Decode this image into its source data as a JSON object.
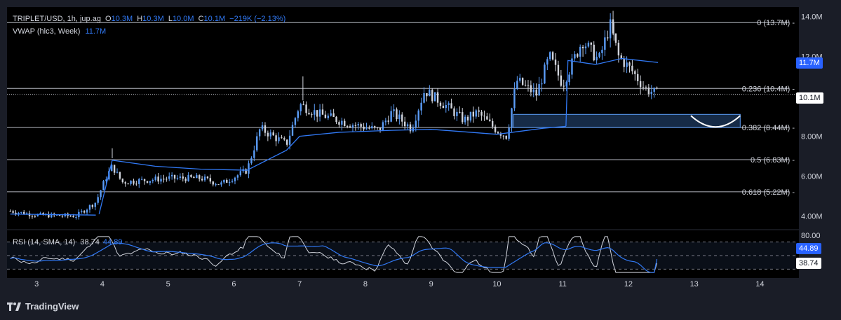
{
  "header": {
    "symbol": "TRIPLET/USD, 1h, jup.ag",
    "o_label": "O",
    "o_value": "10.3M",
    "h_label": "H",
    "h_value": "10.3M",
    "l_label": "L",
    "l_value": "10.0M",
    "c_label": "C",
    "c_value": "10.1M",
    "change": "−219K (−2.13%)",
    "vwap_label": "VWAP (hlc3, Week)",
    "vwap_value": "11.7M"
  },
  "rsi_header": {
    "label": "RSI (14, SMA, 14)",
    "rsi_value": "38.74",
    "sma_value": "44.89"
  },
  "price_tags": {
    "vwap": "11.7M",
    "last": "10.1M"
  },
  "rsi_tags": {
    "sma": "44.89",
    "rsi": "38.74"
  },
  "brand": {
    "name": "TradingView"
  },
  "colors": {
    "background": "#000000",
    "up": "#5b9cf6",
    "down": "#d1d4dc",
    "vwap": "#3179f5",
    "rsi": "#d1d4dc",
    "rsi_sma": "#3179f5",
    "fib": "#b2b5be",
    "zone": "#1e3a5f"
  },
  "chart_data": [
    {
      "type": "candlestick",
      "title": "TRIPLET/USD, 1h, jup.ag",
      "ylim": [
        3.6,
        14.2
      ],
      "yticks": [
        {
          "value": 14,
          "label": "14.0M"
        },
        {
          "value": 12,
          "label": "12.0M"
        },
        {
          "value": 10,
          "label": "10.0M"
        },
        {
          "value": 8,
          "label": "8.00M"
        },
        {
          "value": 6,
          "label": "6.00M"
        },
        {
          "value": 4,
          "label": "4.00M"
        }
      ],
      "xlim": [
        2.55,
        14.55
      ],
      "xticks": [
        "3",
        "4",
        "5",
        "6",
        "7",
        "8",
        "9",
        "10",
        "11",
        "12",
        "13",
        "14"
      ],
      "grid": false,
      "fib_levels": [
        {
          "ratio": "0",
          "price": 13.7,
          "label": "0 (13.7M)"
        },
        {
          "ratio": "0.236",
          "price": 10.4,
          "label": "0.236 (10.4M)"
        },
        {
          "ratio": "0.382",
          "price": 8.44,
          "label": "0.382 (8.44M)"
        },
        {
          "ratio": "0.5",
          "price": 6.83,
          "label": "0.5 (6.83M)"
        },
        {
          "ratio": "0.618",
          "price": 5.22,
          "label": "0.618 (5.22M)"
        }
      ],
      "last_price": 10.1,
      "vwap_last": 11.7,
      "zone": {
        "x_start": 10.25,
        "x_end": 13.7,
        "y_low": 8.44,
        "y_high": 9.1
      },
      "anchors": [
        {
          "x": 2.6,
          "p": 4.25
        },
        {
          "x": 3.0,
          "p": 4.05
        },
        {
          "x": 3.6,
          "p": 4.0
        },
        {
          "x": 3.9,
          "p": 4.7
        },
        {
          "x": 4.05,
          "p": 5.9
        },
        {
          "x": 4.15,
          "p": 6.5
        },
        {
          "x": 4.3,
          "p": 5.7
        },
        {
          "x": 5.0,
          "p": 5.9
        },
        {
          "x": 5.5,
          "p": 5.9
        },
        {
          "x": 5.8,
          "p": 5.6
        },
        {
          "x": 6.2,
          "p": 6.3
        },
        {
          "x": 6.4,
          "p": 8.4
        },
        {
          "x": 6.8,
          "p": 7.6
        },
        {
          "x": 7.0,
          "p": 9.6
        },
        {
          "x": 7.3,
          "p": 9.1
        },
        {
          "x": 7.8,
          "p": 8.6
        },
        {
          "x": 8.2,
          "p": 8.3
        },
        {
          "x": 8.4,
          "p": 9.2
        },
        {
          "x": 8.7,
          "p": 8.4
        },
        {
          "x": 8.9,
          "p": 10.3
        },
        {
          "x": 9.2,
          "p": 9.6
        },
        {
          "x": 9.5,
          "p": 8.8
        },
        {
          "x": 9.7,
          "p": 9.2
        },
        {
          "x": 10.0,
          "p": 8.3
        },
        {
          "x": 10.15,
          "p": 8.0
        },
        {
          "x": 10.3,
          "p": 10.8
        },
        {
          "x": 10.6,
          "p": 10.1
        },
        {
          "x": 10.8,
          "p": 12.0
        },
        {
          "x": 11.0,
          "p": 10.6
        },
        {
          "x": 11.3,
          "p": 12.8
        },
        {
          "x": 11.55,
          "p": 11.8
        },
        {
          "x": 11.72,
          "p": 13.6
        },
        {
          "x": 11.85,
          "p": 12.0
        },
        {
          "x": 12.05,
          "p": 11.3
        },
        {
          "x": 12.25,
          "p": 10.4
        },
        {
          "x": 12.45,
          "p": 10.1
        }
      ],
      "vwap_segments": [
        [
          {
            "x": 2.6,
            "p": 4.1
          },
          {
            "x": 3.9,
            "p": 4.05
          }
        ],
        [
          {
            "x": 3.95,
            "p": 4.1
          },
          {
            "x": 4.15,
            "p": 6.8
          },
          {
            "x": 4.8,
            "p": 6.5
          },
          {
            "x": 5.5,
            "p": 6.35
          },
          {
            "x": 6.2,
            "p": 6.3
          },
          {
            "x": 6.8,
            "p": 7.3
          },
          {
            "x": 7.0,
            "p": 8.0
          },
          {
            "x": 7.6,
            "p": 8.2
          },
          {
            "x": 8.4,
            "p": 8.3
          },
          {
            "x": 9.0,
            "p": 8.35
          },
          {
            "x": 10.0,
            "p": 8.1
          },
          {
            "x": 10.7,
            "p": 8.4
          },
          {
            "x": 11.05,
            "p": 8.5
          }
        ],
        [
          {
            "x": 11.05,
            "p": 8.5
          },
          {
            "x": 11.08,
            "p": 11.8
          },
          {
            "x": 11.5,
            "p": 11.6
          },
          {
            "x": 11.9,
            "p": 11.9
          },
          {
            "x": 12.45,
            "p": 11.7
          }
        ]
      ]
    },
    {
      "type": "line",
      "title": "RSI (14, SMA, 14)",
      "ylim": [
        20,
        80
      ],
      "yticks": [
        {
          "value": 80,
          "label": "80.00"
        }
      ],
      "bands": [
        70,
        50,
        30
      ],
      "series": [
        {
          "name": "RSI",
          "last": 38.74
        },
        {
          "name": "SMA",
          "last": 44.89
        }
      ]
    }
  ]
}
